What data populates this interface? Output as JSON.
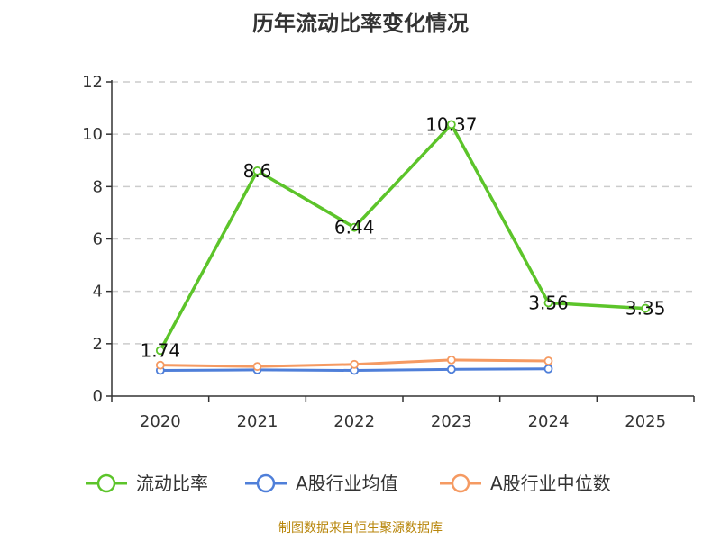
{
  "chart_data": {
    "type": "line",
    "title": "历年流动比率变化情况",
    "x": [
      "2020",
      "2021",
      "2022",
      "2023",
      "2024",
      "2025"
    ],
    "ylim": [
      0,
      12
    ],
    "yticks": [
      0,
      2,
      4,
      6,
      8,
      10,
      12
    ],
    "grid": true,
    "legend_position": "bottom",
    "series": [
      {
        "name": "流动比率",
        "color": "#5cc42a",
        "values": [
          1.74,
          8.6,
          6.44,
          10.37,
          3.56,
          3.35
        ],
        "labels": [
          "1.74",
          "8.6",
          "6.44",
          "10.37",
          "3.56",
          "3.35"
        ]
      },
      {
        "name": "A股行业均值",
        "color": "#4f7fd9",
        "values": [
          0.98,
          1.0,
          0.98,
          1.02,
          1.04,
          null
        ]
      },
      {
        "name": "A股行业中位数",
        "color": "#f59a62",
        "values": [
          1.18,
          1.13,
          1.21,
          1.38,
          1.34,
          null
        ]
      }
    ]
  },
  "source": "制图数据来自恒生聚源数据库"
}
